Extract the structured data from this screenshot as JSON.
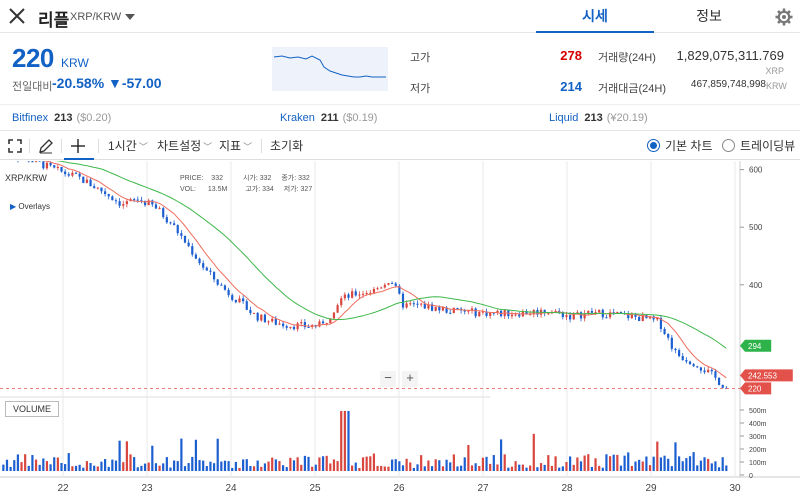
{
  "header": {
    "coin_name": "리플",
    "pair": "XRP/KRW",
    "tabs": [
      "시세",
      "정보"
    ]
  },
  "price": {
    "current": "220",
    "unit": "KRW",
    "change_label": "전일대비",
    "change_rate": "-20.58%",
    "change_price": "▼-57.00"
  },
  "stats": {
    "high_label": "고가",
    "high_value": "278",
    "low_label": "저가",
    "low_value": "214",
    "volume_label": "거래량(24H)",
    "volume_value": "1,829,075,311.769",
    "volume_unit": "XRP",
    "amount_label": "거래대금(24H)",
    "amount_value": "467,859,748,998",
    "amount_unit": "KRW"
  },
  "exchanges": [
    {
      "name": "Bitfinex",
      "price": "213",
      "sub": "($0.20)"
    },
    {
      "name": "Kraken",
      "price": "211",
      "sub": "($0.19)"
    },
    {
      "name": "Liquid",
      "price": "213",
      "sub": "(¥20.19)"
    }
  ],
  "toolbar": {
    "interval": "1시간",
    "chart_settings": "차트설정",
    "indicators": "지표",
    "reset": "초기화",
    "basic_chart": "기본 차트",
    "trading_view": "트레이딩뷰"
  },
  "legend": {
    "price_label": "PRICE:",
    "price": "332",
    "open_label": "시가:",
    "open": "332",
    "close_label": "종가:",
    "close": "332",
    "vol_label": "VOL:",
    "vol": "13.5M",
    "high_label": "고가:",
    "high": "334",
    "low_label": "저가:",
    "low": "327"
  },
  "chart_labels": {
    "symbol": "XRP/KRW",
    "overlays": "Overlays",
    "volume": "VOLUME",
    "zoom_out": "−",
    "zoom_in": "+"
  },
  "chart_data": {
    "type": "candlestick",
    "x_ticks": [
      "22",
      "23",
      "24",
      "25",
      "26",
      "27",
      "28",
      "29",
      "30"
    ],
    "y_ticks": [
      600,
      500,
      400
    ],
    "ylim": [
      212,
      615
    ],
    "volume_ticks": [
      "500m",
      "400m",
      "300m",
      "200m",
      "100m",
      "0"
    ],
    "markers": [
      {
        "label": "294",
        "value": 294,
        "color": "#2db34a"
      },
      {
        "label": "242.553",
        "value": 242.553,
        "color": "#e2524b"
      },
      {
        "label": "220",
        "value": 220,
        "color": "#e2524b"
      }
    ],
    "series_colors": {
      "up": "#d9463e",
      "down": "#1c5fd1",
      "ma_fast": "#ef6e5e",
      "ma_slow": "#3fb84a"
    },
    "close_path": [
      [
        21.3,
        628
      ],
      [
        21.6,
        618
      ],
      [
        21.9,
        600
      ],
      [
        22.2,
        585
      ],
      [
        22.5,
        560
      ],
      [
        22.7,
        540
      ],
      [
        22.9,
        548
      ],
      [
        23.1,
        535
      ],
      [
        23.3,
        505
      ],
      [
        23.5,
        465
      ],
      [
        23.7,
        425
      ],
      [
        23.9,
        395
      ],
      [
        24.1,
        370
      ],
      [
        24.3,
        345
      ],
      [
        24.5,
        335
      ],
      [
        24.7,
        330
      ],
      [
        24.9,
        328
      ],
      [
        25.1,
        330
      ],
      [
        25.3,
        375
      ],
      [
        25.5,
        385
      ],
      [
        25.7,
        390
      ],
      [
        25.9,
        410
      ],
      [
        26.05,
        365
      ],
      [
        26.3,
        363
      ],
      [
        26.6,
        355
      ],
      [
        26.9,
        352
      ],
      [
        27.2,
        350
      ],
      [
        27.5,
        352
      ],
      [
        27.8,
        355
      ],
      [
        28.05,
        345
      ],
      [
        28.3,
        352
      ],
      [
        28.6,
        348
      ],
      [
        28.9,
        342
      ],
      [
        29.1,
        335
      ],
      [
        29.3,
        280
      ],
      [
        29.55,
        262
      ],
      [
        29.75,
        240
      ],
      [
        29.9,
        220
      ]
    ]
  }
}
